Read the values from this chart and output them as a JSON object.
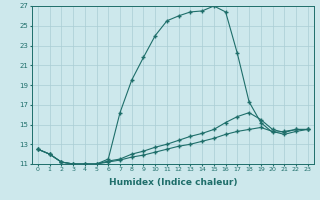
{
  "xlabel": "Humidex (Indice chaleur)",
  "ylabel": "",
  "bg_color": "#cde8ec",
  "grid_color": "#aacdd4",
  "line_color": "#1e6e6a",
  "xlim": [
    -0.5,
    23.5
  ],
  "ylim": [
    11,
    27
  ],
  "xticks": [
    0,
    1,
    2,
    3,
    4,
    5,
    6,
    7,
    8,
    9,
    10,
    11,
    12,
    13,
    14,
    15,
    16,
    17,
    18,
    19,
    20,
    21,
    22,
    23
  ],
  "yticks": [
    11,
    13,
    15,
    17,
    19,
    21,
    23,
    25,
    27
  ],
  "curve1_x": [
    0,
    1,
    2,
    3,
    4,
    5,
    6,
    7,
    8,
    9,
    10,
    11,
    12,
    13,
    14,
    15,
    16,
    17,
    18,
    19,
    20,
    21,
    22,
    23
  ],
  "curve1_y": [
    12.5,
    12.0,
    11.2,
    11.0,
    11.0,
    11.0,
    11.5,
    16.2,
    19.5,
    21.8,
    24.0,
    25.5,
    26.0,
    26.4,
    26.5,
    27.0,
    26.4,
    22.2,
    17.3,
    15.2,
    14.2,
    14.3,
    14.5,
    14.5
  ],
  "curve2_x": [
    0,
    1,
    2,
    3,
    4,
    5,
    6,
    7,
    8,
    9,
    10,
    11,
    12,
    13,
    14,
    15,
    16,
    17,
    18,
    19,
    20,
    21,
    22,
    23
  ],
  "curve2_y": [
    12.5,
    12.0,
    11.2,
    11.0,
    11.0,
    11.0,
    11.3,
    11.5,
    12.0,
    12.3,
    12.7,
    13.0,
    13.4,
    13.8,
    14.1,
    14.5,
    15.2,
    15.8,
    16.2,
    15.5,
    14.5,
    14.2,
    14.5,
    14.5
  ],
  "curve3_x": [
    0,
    1,
    2,
    3,
    4,
    5,
    6,
    7,
    8,
    9,
    10,
    11,
    12,
    13,
    14,
    15,
    16,
    17,
    18,
    19,
    20,
    21,
    22,
    23
  ],
  "curve3_y": [
    12.5,
    12.0,
    11.2,
    11.0,
    11.0,
    11.0,
    11.2,
    11.4,
    11.7,
    11.9,
    12.2,
    12.5,
    12.8,
    13.0,
    13.3,
    13.6,
    14.0,
    14.3,
    14.5,
    14.7,
    14.3,
    14.0,
    14.3,
    14.5
  ]
}
